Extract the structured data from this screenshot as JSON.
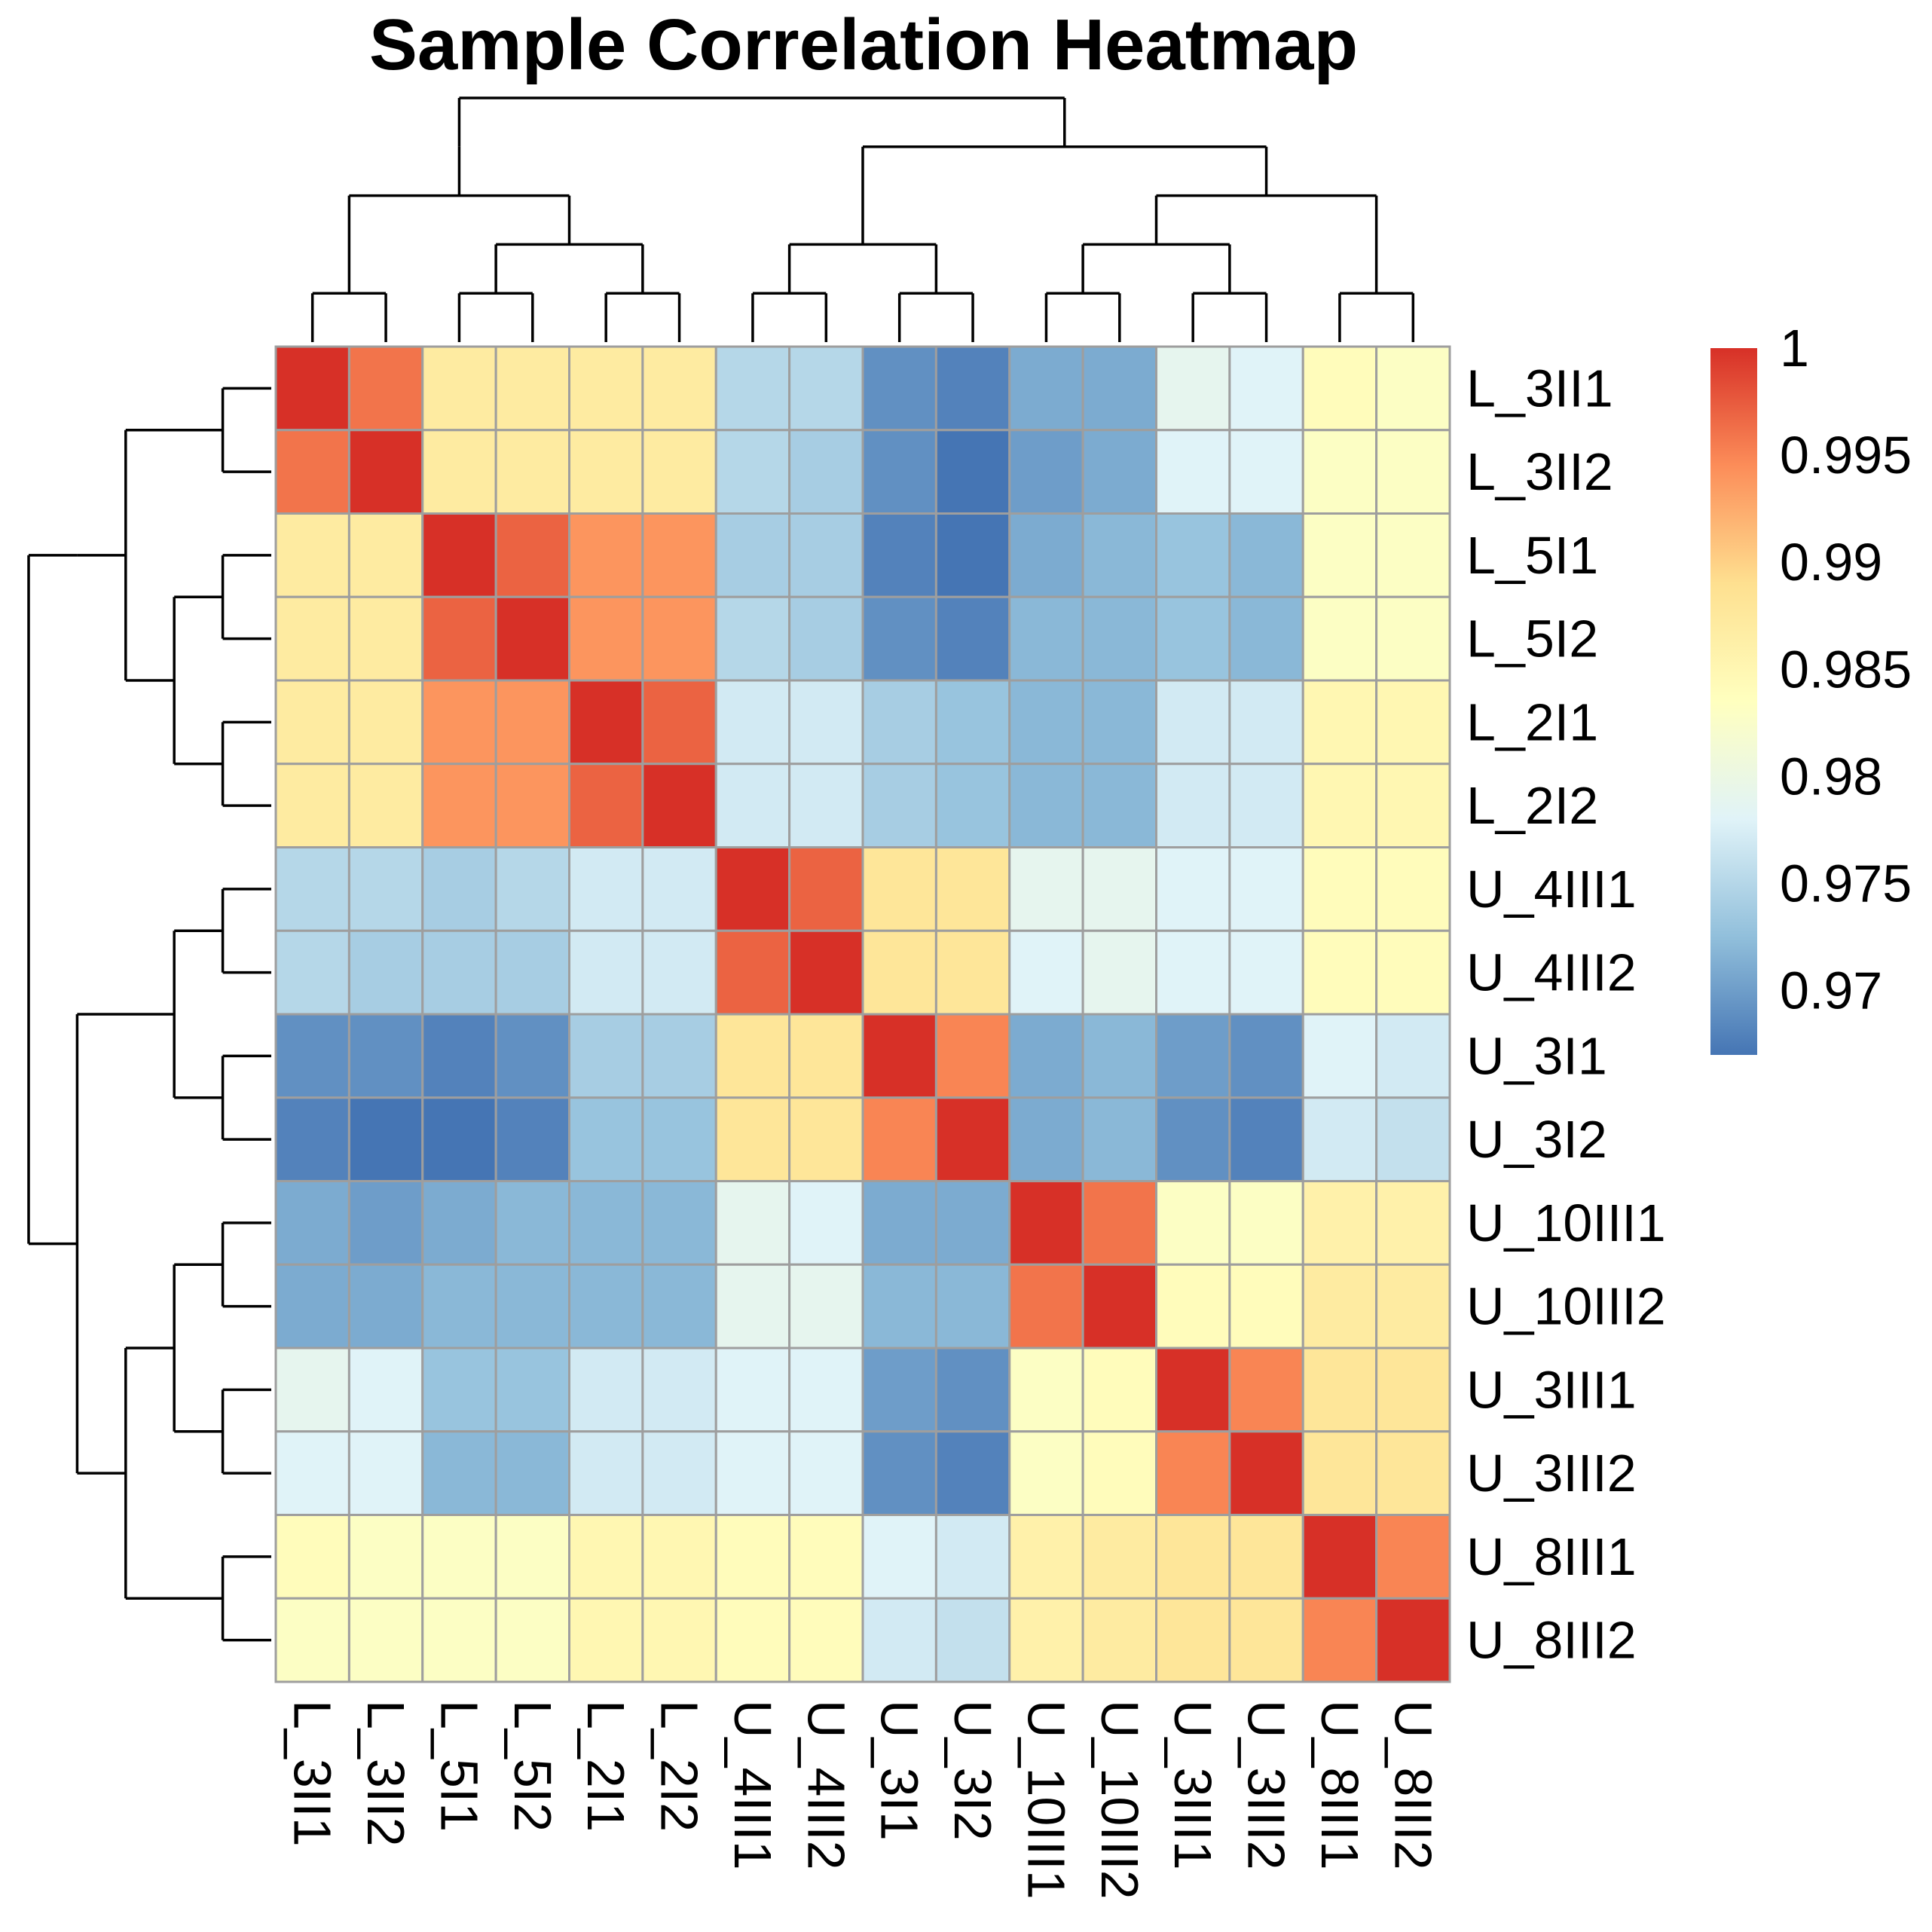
{
  "chart_data": {
    "type": "heatmap",
    "title": "Sample Correlation Heatmap",
    "row_labels": [
      "L_3II1",
      "L_3II2",
      "L_5I1",
      "L_5I2",
      "L_2I1",
      "L_2I2",
      "U_4III1",
      "U_4III2",
      "U_3I1",
      "U_3I2",
      "U_10III1",
      "U_10III2",
      "U_3III1",
      "U_3III2",
      "U_8III1",
      "U_8III2"
    ],
    "col_labels": [
      "L_3II1",
      "L_3II2",
      "L_5I1",
      "L_5I2",
      "L_2I1",
      "L_2I2",
      "U_4III1",
      "U_4III2",
      "U_3I1",
      "U_3I2",
      "U_10III1",
      "U_10III2",
      "U_3III1",
      "U_3III2",
      "U_8III1",
      "U_8III2"
    ],
    "values": [
      [
        1.0,
        0.996,
        0.987,
        0.987,
        0.987,
        0.987,
        0.975,
        0.975,
        0.969,
        0.968,
        0.971,
        0.971,
        0.979,
        0.978,
        0.984,
        0.983
      ],
      [
        0.996,
        1.0,
        0.987,
        0.987,
        0.987,
        0.987,
        0.975,
        0.974,
        0.969,
        0.967,
        0.97,
        0.971,
        0.978,
        0.978,
        0.983,
        0.983
      ],
      [
        0.987,
        0.987,
        1.0,
        0.997,
        0.994,
        0.994,
        0.974,
        0.974,
        0.968,
        0.967,
        0.971,
        0.972,
        0.973,
        0.972,
        0.983,
        0.983
      ],
      [
        0.987,
        0.987,
        0.997,
        1.0,
        0.994,
        0.994,
        0.975,
        0.974,
        0.969,
        0.968,
        0.972,
        0.972,
        0.973,
        0.972,
        0.983,
        0.983
      ],
      [
        0.987,
        0.987,
        0.994,
        0.994,
        1.0,
        0.997,
        0.977,
        0.977,
        0.974,
        0.973,
        0.972,
        0.972,
        0.977,
        0.977,
        0.985,
        0.985
      ],
      [
        0.987,
        0.987,
        0.994,
        0.994,
        0.997,
        1.0,
        0.977,
        0.977,
        0.974,
        0.973,
        0.972,
        0.972,
        0.977,
        0.977,
        0.985,
        0.985
      ],
      [
        0.975,
        0.975,
        0.974,
        0.975,
        0.977,
        0.977,
        1.0,
        0.997,
        0.988,
        0.988,
        0.979,
        0.979,
        0.978,
        0.978,
        0.984,
        0.984
      ],
      [
        0.975,
        0.974,
        0.974,
        0.974,
        0.977,
        0.977,
        0.997,
        1.0,
        0.988,
        0.988,
        0.978,
        0.979,
        0.978,
        0.978,
        0.984,
        0.984
      ],
      [
        0.969,
        0.969,
        0.968,
        0.969,
        0.974,
        0.974,
        0.988,
        0.988,
        1.0,
        0.995,
        0.971,
        0.972,
        0.97,
        0.969,
        0.978,
        0.977
      ],
      [
        0.968,
        0.967,
        0.967,
        0.968,
        0.973,
        0.973,
        0.988,
        0.988,
        0.995,
        1.0,
        0.971,
        0.972,
        0.969,
        0.968,
        0.977,
        0.976
      ],
      [
        0.971,
        0.97,
        0.971,
        0.972,
        0.972,
        0.972,
        0.979,
        0.978,
        0.971,
        0.971,
        1.0,
        0.996,
        0.983,
        0.983,
        0.986,
        0.986
      ],
      [
        0.971,
        0.971,
        0.972,
        0.972,
        0.972,
        0.972,
        0.979,
        0.979,
        0.972,
        0.972,
        0.996,
        1.0,
        0.984,
        0.984,
        0.987,
        0.987
      ],
      [
        0.979,
        0.978,
        0.973,
        0.973,
        0.977,
        0.977,
        0.978,
        0.978,
        0.97,
        0.969,
        0.983,
        0.984,
        1.0,
        0.995,
        0.988,
        0.988
      ],
      [
        0.978,
        0.978,
        0.972,
        0.972,
        0.977,
        0.977,
        0.978,
        0.978,
        0.969,
        0.968,
        0.983,
        0.984,
        0.995,
        1.0,
        0.988,
        0.988
      ],
      [
        0.984,
        0.983,
        0.983,
        0.983,
        0.985,
        0.985,
        0.984,
        0.984,
        0.978,
        0.977,
        0.986,
        0.987,
        0.988,
        0.988,
        1.0,
        0.995
      ],
      [
        0.983,
        0.983,
        0.983,
        0.983,
        0.985,
        0.985,
        0.984,
        0.984,
        0.977,
        0.976,
        0.986,
        0.987,
        0.988,
        0.988,
        0.995,
        1.0
      ]
    ],
    "legend": {
      "min": 0.967,
      "max": 1.0,
      "ticks": [
        1,
        0.995,
        0.99,
        0.985,
        0.98,
        0.975,
        0.97
      ],
      "tick_labels": [
        "1",
        "0.995",
        "0.99",
        "0.985",
        "0.98",
        "0.975",
        "0.97"
      ],
      "palette": [
        "#4575b4",
        "#91bfdb",
        "#e0f3f8",
        "#ffffbf",
        "#fee090",
        "#fc8d59",
        "#d73027"
      ]
    },
    "col_dendrogram": [
      [
        [
          1
        ],
        [
          2
        ]
      ],
      [
        [
          [
            3
          ],
          [
            4
          ]
        ],
        [
          [
            5
          ],
          [
            6
          ]
        ]
      ]
    ],
    "dendrogram": {
      "order_note": "leaf order matches labels",
      "tree": [
        [
          [
            [
              1,
              2
            ],
            [
              [
                3,
                4
              ],
              [
                5,
                6
              ]
            ]
          ]
        ],
        [
          [
            [
              7,
              8
            ],
            [
              9,
              10
            ]
          ],
          [
            [
              [
                11,
                12
              ],
              [
                13,
                14
              ]
            ],
            [
              15,
              16
            ]
          ]
        ]
      ]
    },
    "xlabel": "",
    "ylabel": ""
  }
}
